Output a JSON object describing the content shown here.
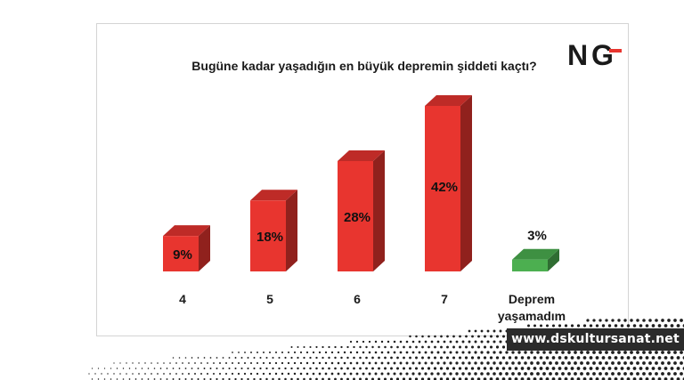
{
  "chart_data": {
    "type": "bar",
    "title": "Bugüne kadar yaşadığın en büyük depremin şiddeti kaçtı?",
    "categories": [
      "4",
      "5",
      "6",
      "7",
      "Deprem yaşamadım"
    ],
    "values": [
      9,
      18,
      28,
      42,
      3
    ],
    "value_labels": [
      "9%",
      "18%",
      "28%",
      "42%",
      "3%"
    ],
    "unit": "%",
    "ylim": [
      0,
      42
    ],
    "grid": false,
    "bar_color": "#e8352f",
    "highlight_color": "#4caf50",
    "highlight_index": 4,
    "style": "3d"
  },
  "logo": {
    "text_n": "N",
    "text_g": "G",
    "accent_color": "#e8352f"
  },
  "watermark": {
    "text": "www.dskultursanat.net"
  }
}
